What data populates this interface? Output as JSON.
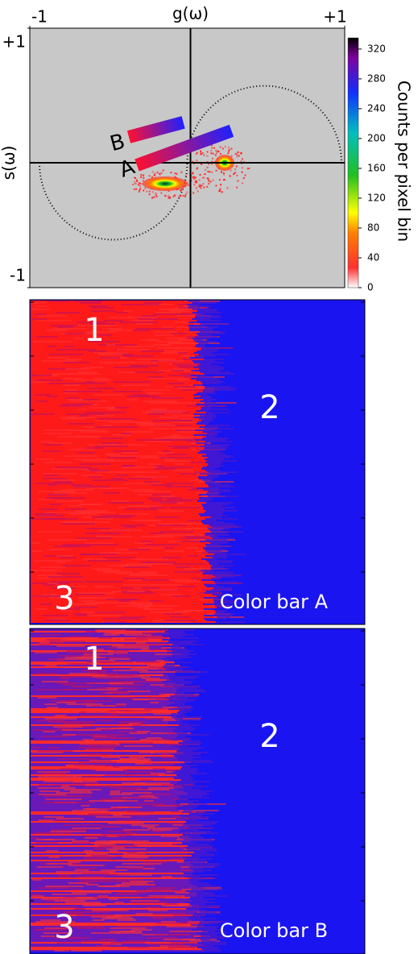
{
  "chart_data": [
    {
      "type": "phasor",
      "xlabel": "g(ω)",
      "ylabel": "s(ω)",
      "xlim": [
        -1,
        1
      ],
      "ylim": [
        -1,
        1
      ],
      "xticks": [
        -1,
        {
          "value": 1,
          "label": "+1"
        }
      ],
      "yticks": [
        -1,
        {
          "value": 1,
          "label": "+1"
        }
      ],
      "colorbar": {
        "label": "Counts per pixel bin",
        "lim": [
          0,
          335
        ],
        "ticks": [
          0,
          40,
          80,
          120,
          160,
          200,
          240,
          280,
          320
        ]
      },
      "annotations": [
        "A",
        "B"
      ]
    },
    {
      "type": "image",
      "annotations": [
        "1",
        "2",
        "3",
        "Color bar A"
      ]
    },
    {
      "type": "image",
      "annotations": [
        "1",
        "2",
        "3",
        "Color bar B"
      ]
    }
  ]
}
